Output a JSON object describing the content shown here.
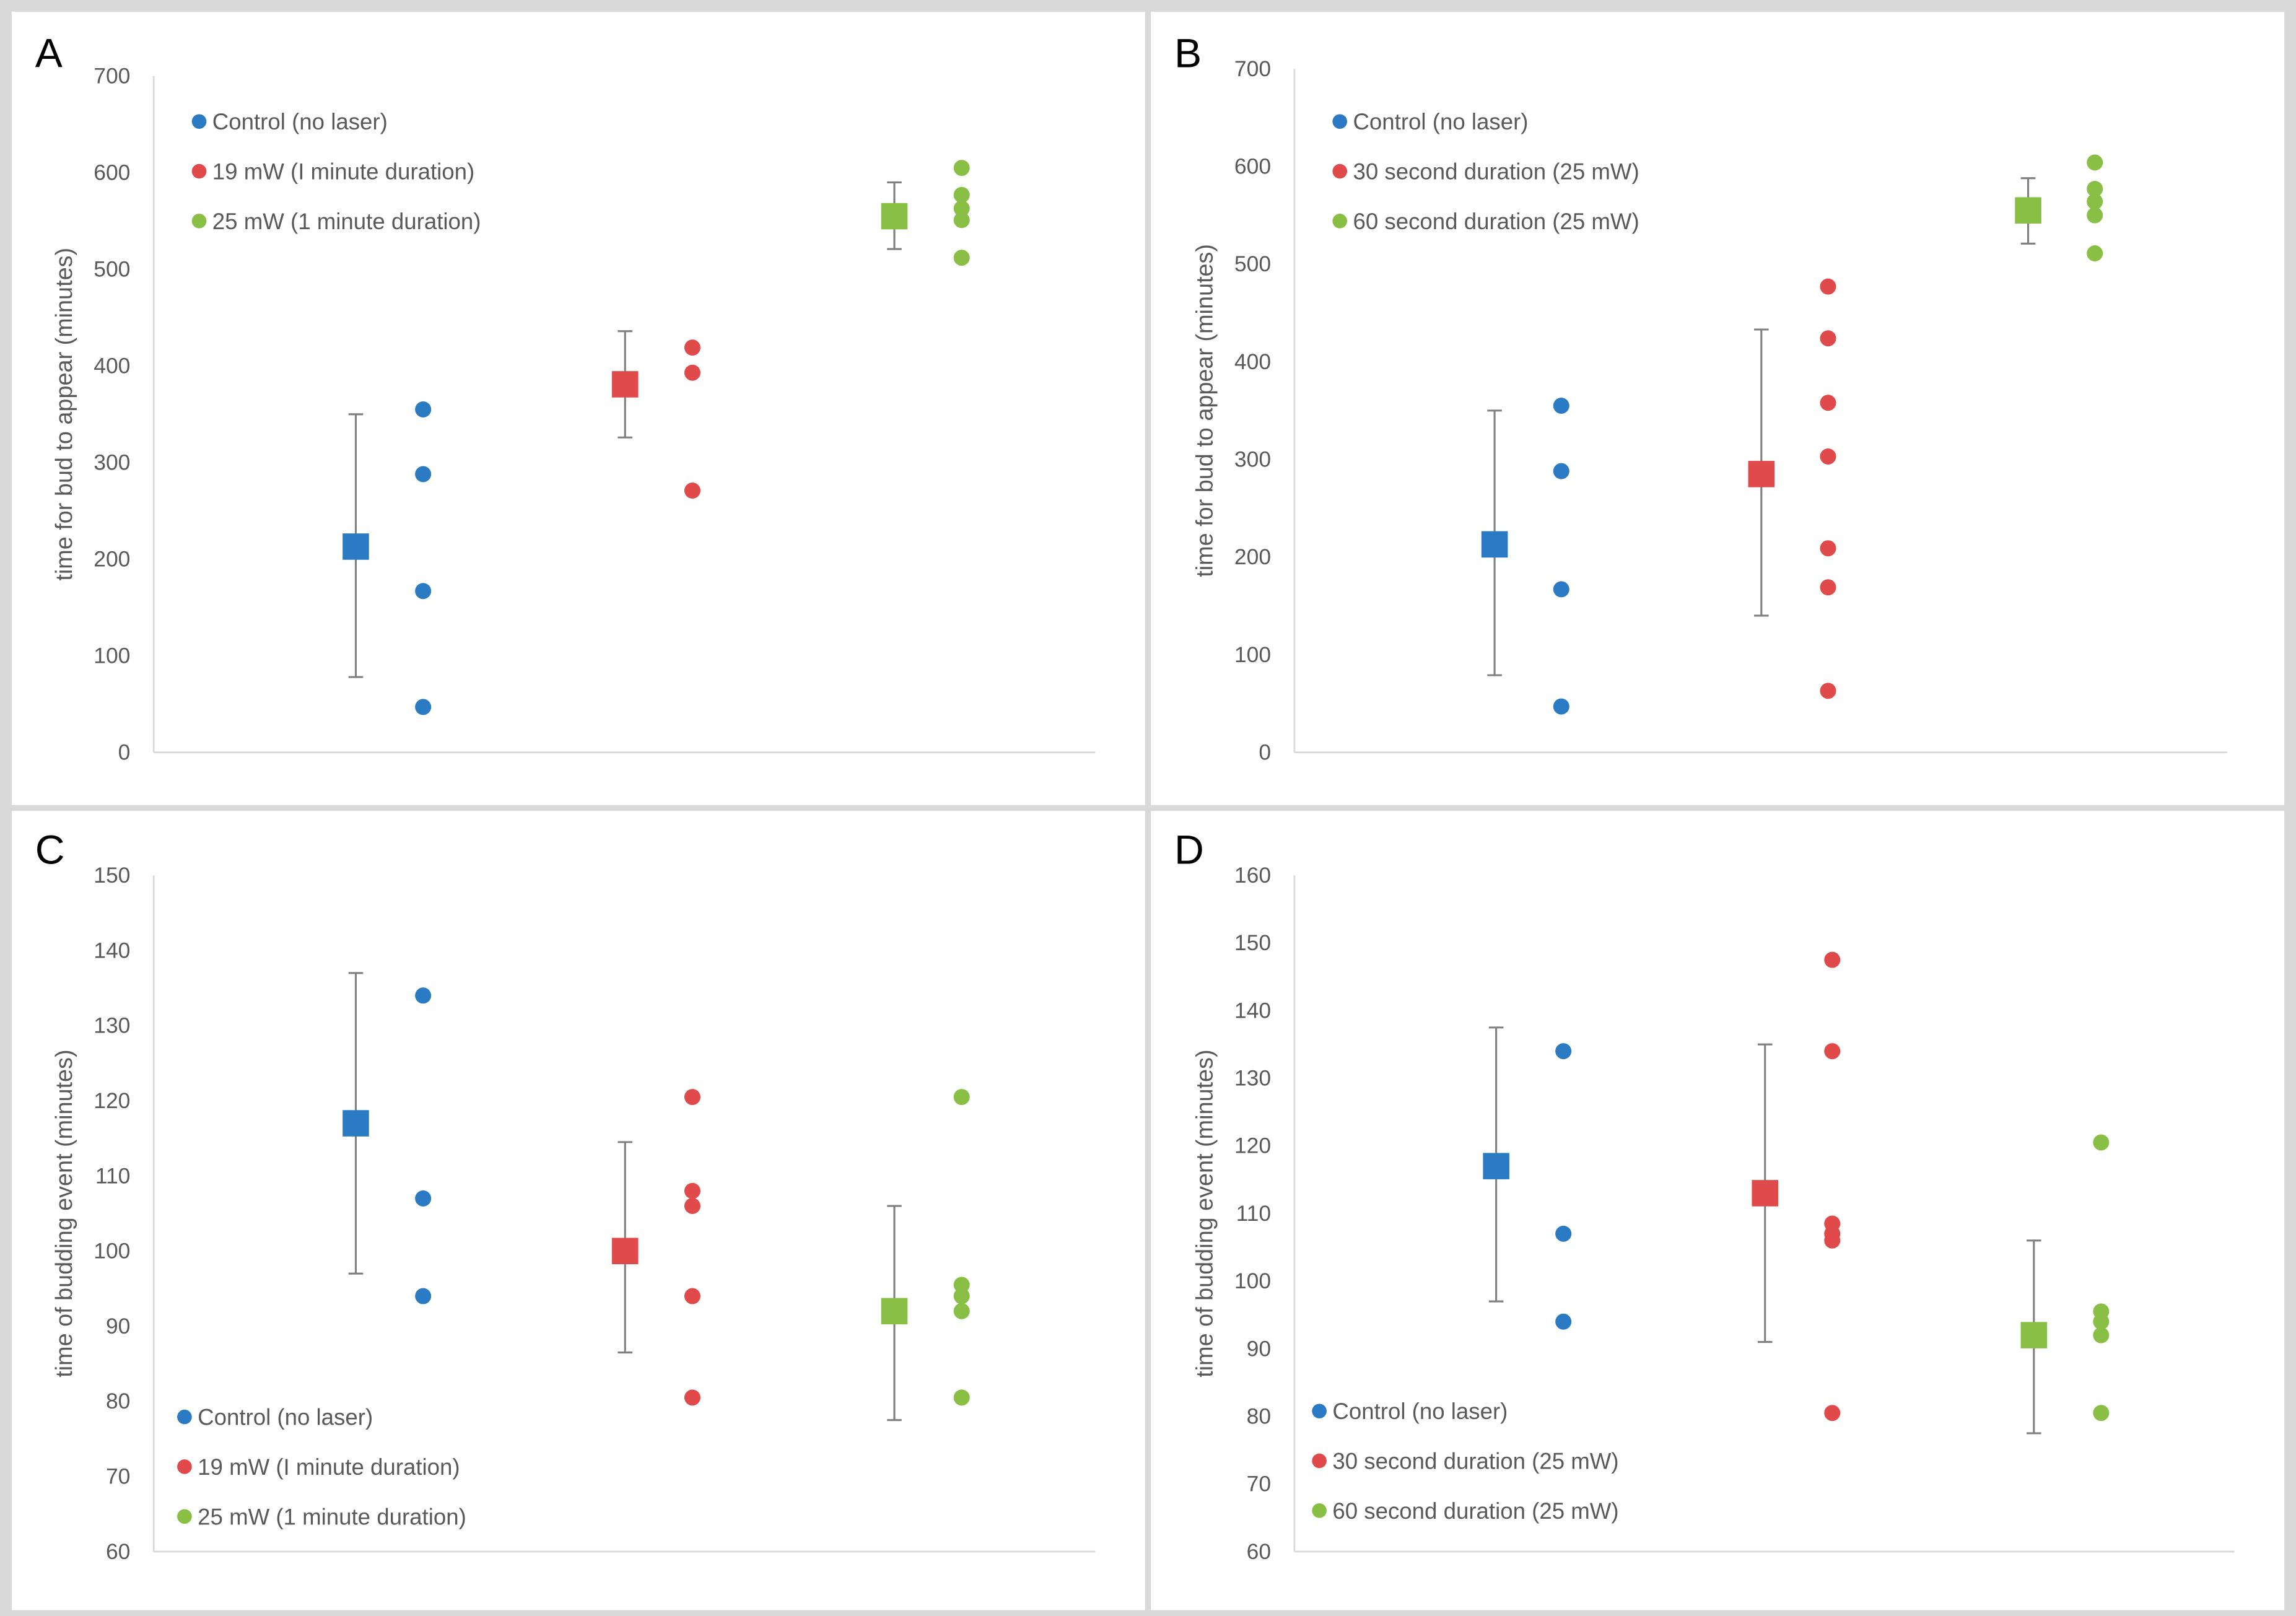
{
  "colors": {
    "control": "#2b7bc4",
    "treat1": "#e04a4a",
    "treat2": "#88bf44",
    "error": "#7f7f7f",
    "axis": "#d9d9d9"
  },
  "chart_data": [
    {
      "type": "scatter",
      "panel": "A",
      "ylabel": "time for bud to appear (minutes)",
      "ylim": [
        0,
        700
      ],
      "yticks": [
        0,
        100,
        200,
        300,
        400,
        500,
        600,
        700
      ],
      "legend_position": "top-left",
      "series": [
        {
          "name": "Control (no laser)",
          "color_key": "control",
          "mean": 213,
          "error": [
            78,
            350
          ],
          "points": [
            355,
            288,
            167,
            47
          ]
        },
        {
          "name": "19 mW (I minute duration)",
          "color_key": "treat1",
          "mean": 381,
          "error": [
            326,
            436
          ],
          "points": [
            419,
            393,
            271
          ]
        },
        {
          "name": "25 mW (1 minute duration)",
          "color_key": "treat2",
          "mean": 555,
          "error": [
            521,
            590
          ],
          "points": [
            605,
            577,
            563,
            551,
            512
          ]
        }
      ]
    },
    {
      "type": "scatter",
      "panel": "B",
      "ylabel": "time for bud to appear (minutes)",
      "ylim": [
        0,
        700
      ],
      "yticks": [
        0,
        100,
        200,
        300,
        400,
        500,
        600,
        700
      ],
      "legend_position": "top-left",
      "series": [
        {
          "name": "Control (no laser)",
          "color_key": "control",
          "mean": 213,
          "error": [
            79,
            350
          ],
          "points": [
            355,
            288,
            167,
            47
          ]
        },
        {
          "name": "30 second duration (25 mW)",
          "color_key": "treat1",
          "mean": 285,
          "error": [
            140,
            433
          ],
          "points": [
            477,
            424,
            358,
            303,
            209,
            169,
            63
          ]
        },
        {
          "name": "60 second duration (25 mW)",
          "color_key": "treat2",
          "mean": 555,
          "error": [
            521,
            588
          ],
          "points": [
            604,
            577,
            564,
            550,
            511
          ]
        }
      ]
    },
    {
      "type": "scatter",
      "panel": "C",
      "ylabel": "time of budding event (minutes)",
      "ylim": [
        60,
        150
      ],
      "yticks": [
        60,
        70,
        80,
        90,
        100,
        110,
        120,
        130,
        140,
        150
      ],
      "legend_position": "bottom-left",
      "series": [
        {
          "name": "Control (no laser)",
          "color_key": "control",
          "mean": 117,
          "error": [
            97,
            137
          ],
          "points": [
            134,
            107,
            94
          ]
        },
        {
          "name": "19 mW (I minute duration)",
          "color_key": "treat1",
          "mean": 100,
          "error": [
            86.5,
            114.5
          ],
          "points": [
            120.5,
            108,
            106,
            94,
            80.5
          ]
        },
        {
          "name": "25 mW (1 minute duration)",
          "color_key": "treat2",
          "mean": 92,
          "error": [
            77.5,
            106
          ],
          "points": [
            120.5,
            95.5,
            94,
            92,
            80.5
          ]
        }
      ]
    },
    {
      "type": "scatter",
      "panel": "D",
      "ylabel": "time of budding event (minutes)",
      "ylim": [
        60,
        160
      ],
      "yticks": [
        60,
        70,
        80,
        90,
        100,
        110,
        120,
        130,
        140,
        150,
        160
      ],
      "legend_position": "bottom-left",
      "series": [
        {
          "name": "Control (no laser)",
          "color_key": "control",
          "mean": 117,
          "error": [
            97,
            137.5
          ],
          "points": [
            134,
            107,
            94
          ]
        },
        {
          "name": "30 second duration (25 mW)",
          "color_key": "treat1",
          "mean": 113,
          "error": [
            91,
            135
          ],
          "points": [
            147.5,
            134,
            108.5,
            107,
            106,
            80.5
          ]
        },
        {
          "name": "60 second duration (25 mW)",
          "color_key": "treat2",
          "mean": 92,
          "error": [
            77.5,
            106
          ],
          "points": [
            120.5,
            95.5,
            94,
            92,
            80.5
          ]
        }
      ]
    }
  ]
}
